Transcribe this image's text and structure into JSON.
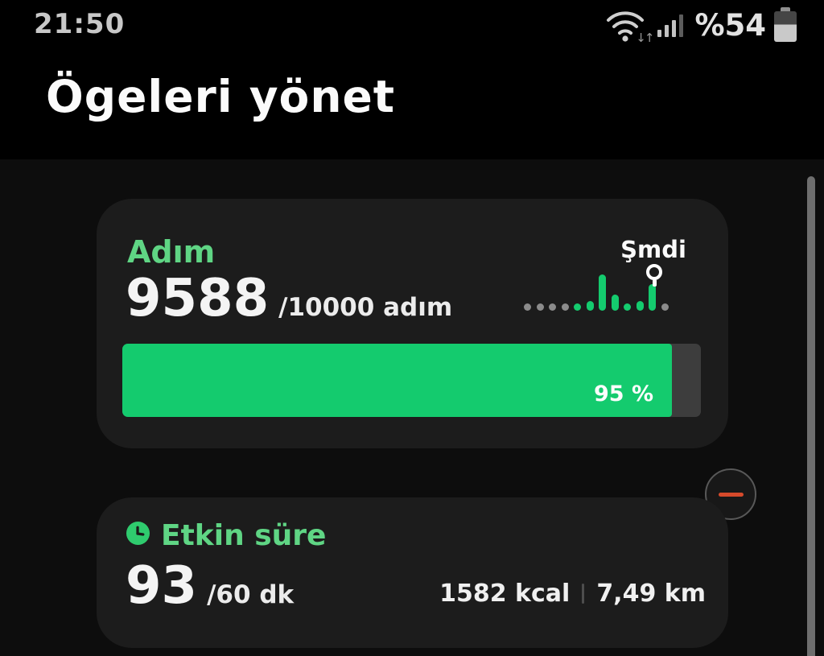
{
  "status_bar": {
    "time": "21:50",
    "battery_text": "%54",
    "wifi_arrows": "↓↑"
  },
  "header": {
    "title": "Ögeleri yönet"
  },
  "steps_card": {
    "title": "Adım",
    "value": "9588",
    "goal": "/10000 adım",
    "now_label": "Şmdi",
    "progress_label": "95 %",
    "progress_percent": 95
  },
  "active_card": {
    "title": "Etkin süre",
    "value": "93",
    "goal": "/60 dk",
    "calories": "1582 kcal",
    "distance": "7,49 km"
  },
  "chart_data": {
    "type": "bar",
    "title": "",
    "xlabel": "",
    "ylabel": "",
    "legend": [],
    "annotation_label": "Şmdi",
    "marker_index": 10,
    "bars": [
      {
        "h": 9,
        "state": "off"
      },
      {
        "h": 9,
        "state": "off"
      },
      {
        "h": 9,
        "state": "off"
      },
      {
        "h": 9,
        "state": "off"
      },
      {
        "h": 9,
        "state": "on"
      },
      {
        "h": 12,
        "state": "on"
      },
      {
        "h": 45,
        "state": "on"
      },
      {
        "h": 20,
        "state": "on"
      },
      {
        "h": 9,
        "state": "on"
      },
      {
        "h": 12,
        "state": "on"
      },
      {
        "h": 33,
        "state": "on"
      },
      {
        "h": 9,
        "state": "off"
      }
    ]
  },
  "colors": {
    "green": "#14cb6e",
    "green_text": "#5fd584",
    "green_icon": "#2fcb6e",
    "gray_dot": "#8b8b8b",
    "track": "#3d3d3d",
    "card": "#1c1c1c",
    "red": "#d64a2b"
  }
}
